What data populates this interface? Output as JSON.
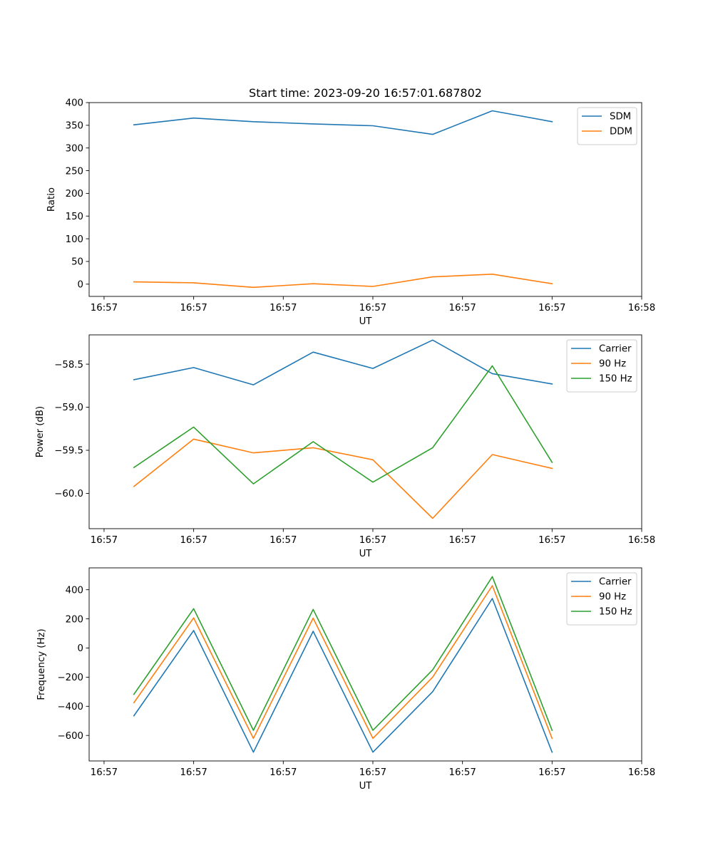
{
  "chart_data": [
    {
      "type": "line",
      "title": "Start time: 2023-09-20 16:57:01.687802",
      "xlabel": "UT",
      "ylabel": "Ratio",
      "grid": false,
      "legend": "top-right",
      "x_tick_labels": [
        "16:57",
        "16:57",
        "16:57",
        "16:57",
        "16:57",
        "16:57",
        "16:58"
      ],
      "xlim": [
        -0.75,
        8.5
      ],
      "x_tick_values": [
        -0.5,
        1,
        2.5,
        4,
        5.5,
        7,
        8.5
      ],
      "ylim": [
        -27,
        400
      ],
      "y_ticks": [
        0,
        50,
        100,
        150,
        200,
        250,
        300,
        350,
        400
      ],
      "y_tick_labels": [
        "0",
        "50",
        "100",
        "150",
        "200",
        "250",
        "300",
        "350",
        "400"
      ],
      "x": [
        0,
        1,
        2,
        3,
        4,
        5,
        6,
        7
      ],
      "series": [
        {
          "name": "SDM",
          "color": "#1f77b4",
          "values": [
            351,
            366,
            358,
            353,
            349,
            330,
            382,
            358
          ]
        },
        {
          "name": "DDM",
          "color": "#ff7f0e",
          "values": [
            5,
            3,
            -7,
            1,
            -5,
            16,
            22,
            1
          ]
        }
      ]
    },
    {
      "type": "line",
      "title": "",
      "xlabel": "UT",
      "ylabel": "Power (dB)",
      "grid": false,
      "legend": "top-right",
      "x_tick_labels": [
        "16:57",
        "16:57",
        "16:57",
        "16:57",
        "16:57",
        "16:57",
        "16:58"
      ],
      "xlim": [
        -0.75,
        8.5
      ],
      "x_tick_values": [
        -0.5,
        1,
        2.5,
        4,
        5.5,
        7,
        8.5
      ],
      "ylim": [
        -60.41,
        -58.16
      ],
      "y_ticks": [
        -60.0,
        -59.5,
        -59.0,
        -58.5
      ],
      "y_tick_labels": [
        "−60.0",
        "−59.5",
        "−59.0",
        "−58.5"
      ],
      "x": [
        0,
        1,
        2,
        3,
        4,
        5,
        6,
        7
      ],
      "series": [
        {
          "name": "Carrier",
          "color": "#1f77b4",
          "values": [
            -58.68,
            -58.54,
            -58.74,
            -58.36,
            -58.55,
            -58.22,
            -58.61,
            -58.73
          ]
        },
        {
          "name": "90 Hz",
          "color": "#ff7f0e",
          "values": [
            -59.92,
            -59.37,
            -59.53,
            -59.47,
            -59.61,
            -60.29,
            -59.55,
            -59.71
          ]
        },
        {
          "name": "150 Hz",
          "color": "#2ca02c",
          "values": [
            -59.7,
            -59.23,
            -59.89,
            -59.4,
            -59.87,
            -59.47,
            -58.52,
            -59.64
          ]
        }
      ]
    },
    {
      "type": "line",
      "title": "",
      "xlabel": "UT",
      "ylabel": "Frequency (Hz)",
      "grid": false,
      "legend": "top-right",
      "x_tick_labels": [
        "16:57",
        "16:57",
        "16:57",
        "16:57",
        "16:57",
        "16:57",
        "16:58"
      ],
      "xlim": [
        -0.75,
        8.5
      ],
      "x_tick_values": [
        -0.5,
        1,
        2.5,
        4,
        5.5,
        7,
        8.5
      ],
      "ylim": [
        -775,
        550
      ],
      "y_ticks": [
        -600,
        -400,
        -200,
        0,
        200,
        400
      ],
      "y_tick_labels": [
        "−600",
        "−400",
        "−200",
        "0",
        "200",
        "400"
      ],
      "x": [
        0,
        1,
        2,
        3,
        4,
        5,
        6,
        7
      ],
      "series": [
        {
          "name": "Carrier",
          "color": "#1f77b4",
          "values": [
            -465,
            120,
            -715,
            115,
            -715,
            -300,
            340,
            -715
          ]
        },
        {
          "name": "90 Hz",
          "color": "#ff7f0e",
          "values": [
            -375,
            207,
            -620,
            205,
            -620,
            -200,
            428,
            -620
          ]
        },
        {
          "name": "150 Hz",
          "color": "#2ca02c",
          "values": [
            -318,
            270,
            -565,
            265,
            -565,
            -150,
            490,
            -565
          ]
        }
      ]
    }
  ]
}
